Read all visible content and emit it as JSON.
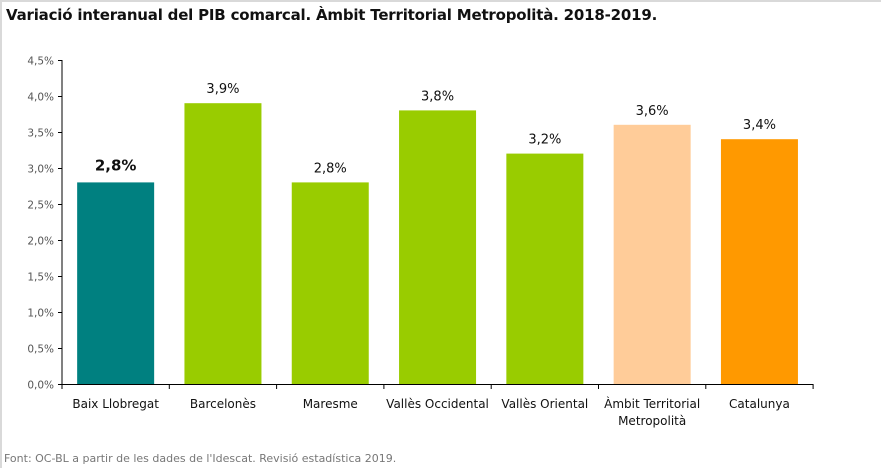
{
  "chart_data": {
    "type": "bar",
    "title": "Variació interanual del PIB comarcal. Àmbit Territorial Metropolità. 2018-2019.",
    "categories": [
      [
        "Baix Llobregat"
      ],
      [
        "Barcelonès"
      ],
      [
        "Maresme"
      ],
      [
        "Vallès Occidental"
      ],
      [
        "Vallès Oriental"
      ],
      [
        "Àmbit Territorial",
        "Metropolità"
      ],
      [
        "Catalunya"
      ]
    ],
    "values": [
      2.8,
      3.9,
      2.8,
      3.8,
      3.2,
      3.6,
      3.4
    ],
    "data_labels": [
      "2,8%",
      "3,9%",
      "2,8%",
      "3,8%",
      "3,2%",
      "3,6%",
      "3,4%"
    ],
    "colors": [
      "#008080",
      "#99cc00",
      "#99cc00",
      "#99cc00",
      "#99cc00",
      "#ffcc99",
      "#ff9900"
    ],
    "highlighted_label_index": 0,
    "ylim": [
      0,
      4.5
    ],
    "yticks": [
      "0,0%",
      "0,5%",
      "1,0%",
      "1,5%",
      "2,0%",
      "2,5%",
      "3,0%",
      "3,5%",
      "4,0%",
      "4,5%"
    ],
    "xlabel": "",
    "ylabel": "",
    "grid": false,
    "legend": "none"
  },
  "footer": "Font: OC-BL a partir de les dades de l'Idescat. Revisió estadística 2019."
}
